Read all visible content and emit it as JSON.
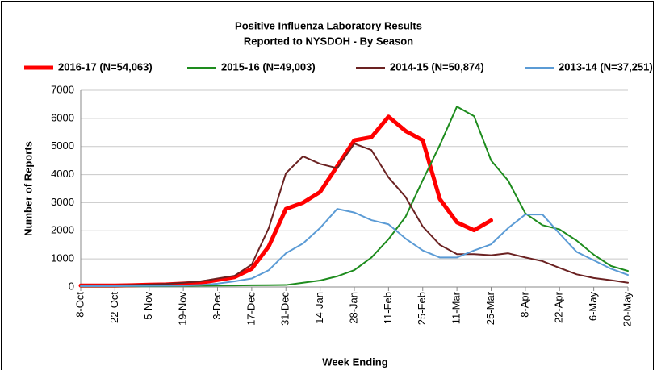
{
  "chart_data": {
    "type": "line",
    "title": "Positive Influenza Laboratory Results",
    "subtitle": "Reported to NYSDOH - By Season",
    "y_label": "Number of Reports",
    "x_label": "Week Ending",
    "legend": "top",
    "grid": true,
    "ylim": [
      0,
      7000
    ],
    "yticks": [
      0,
      1000,
      2000,
      3000,
      4000,
      5000,
      6000,
      7000
    ],
    "categories": [
      "8-Oct",
      null,
      "22-Oct",
      null,
      "5-Nov",
      null,
      "19-Nov",
      null,
      "3-Dec",
      null,
      "17-Dec",
      null,
      "31-Dec",
      null,
      "14-Jan",
      null,
      "28-Jan",
      null,
      "11-Feb",
      null,
      "25-Feb",
      null,
      "11-Mar",
      null,
      "25-Mar",
      null,
      "8-Apr",
      null,
      "22-Apr",
      null,
      "6-May",
      null,
      "20-May"
    ],
    "series": [
      {
        "name": "2016-17 (N=54,063)",
        "color": "#ff0000",
        "values": [
          50,
          50,
          50,
          60,
          80,
          90,
          120,
          150,
          250,
          350,
          650,
          1450,
          2780,
          3000,
          3380,
          4300,
          5220,
          5330,
          6060,
          5550,
          5220,
          3130,
          2300,
          2020,
          2370,
          null,
          null,
          null,
          null,
          null,
          null,
          null,
          null
        ]
      },
      {
        "name": "2015-16 (N=49,003)",
        "color": "#1e8c1e",
        "values": [
          20,
          20,
          20,
          25,
          30,
          35,
          40,
          45,
          50,
          55,
          60,
          65,
          70,
          150,
          230,
          380,
          600,
          1050,
          1700,
          2500,
          3800,
          5050,
          6420,
          6080,
          4500,
          3780,
          2620,
          2200,
          2050,
          1650,
          1150,
          750,
          570
        ]
      },
      {
        "name": "2014-15 (N=50,874)",
        "color": "#6b2222",
        "values": [
          60,
          60,
          60,
          70,
          90,
          110,
          150,
          200,
          300,
          400,
          800,
          2100,
          4050,
          4650,
          4380,
          4230,
          5100,
          4870,
          3900,
          3200,
          2150,
          1500,
          1170,
          1170,
          1130,
          1200,
          1050,
          920,
          680,
          450,
          320,
          240,
          150
        ]
      },
      {
        "name": "2013-14 (N=37,251)",
        "color": "#5b9bd5",
        "values": [
          30,
          30,
          30,
          35,
          40,
          45,
          50,
          70,
          120,
          200,
          300,
          600,
          1200,
          1550,
          2100,
          2780,
          2650,
          2380,
          2230,
          1720,
          1300,
          1050,
          1050,
          1300,
          1520,
          2100,
          2580,
          2580,
          1900,
          1250,
          950,
          650,
          430
        ]
      }
    ]
  }
}
